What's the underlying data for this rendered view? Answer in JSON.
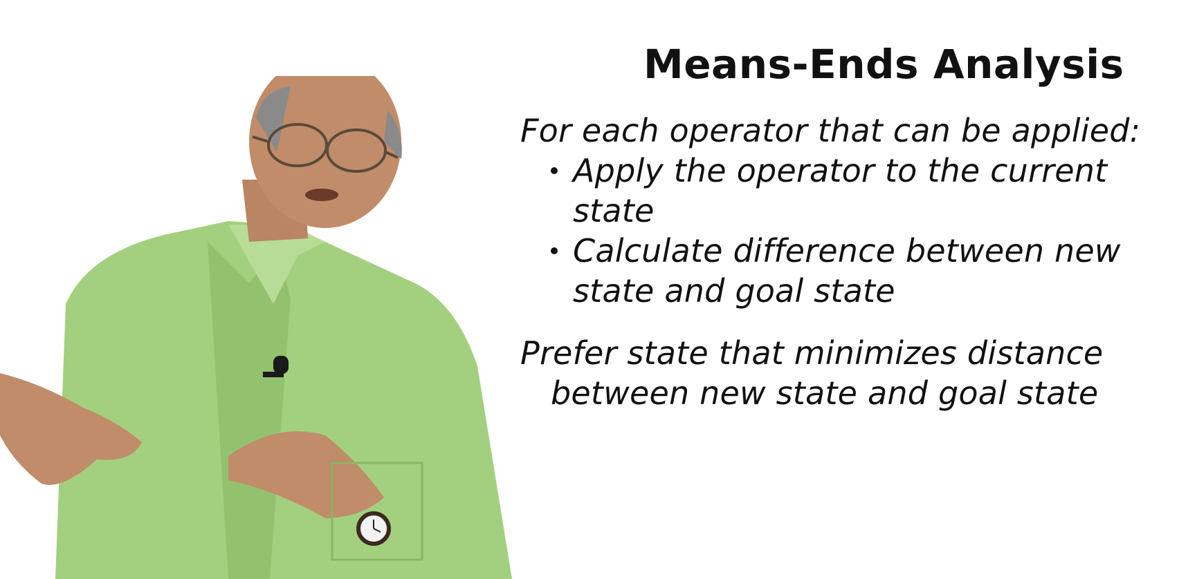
{
  "slide": {
    "title": "Means-Ends Analysis",
    "lead": "For each operator that can be applied:",
    "bullets": [
      {
        "text": "Apply the operator to the current state"
      },
      {
        "text": "Calculate difference between new state and goal state"
      }
    ],
    "preference_line1": "Prefer state that minimizes distance",
    "preference_line2": "between new state and goal state"
  },
  "presenter": {
    "shirt_color": "#9ccc7a",
    "background_color": "#ffffff"
  }
}
